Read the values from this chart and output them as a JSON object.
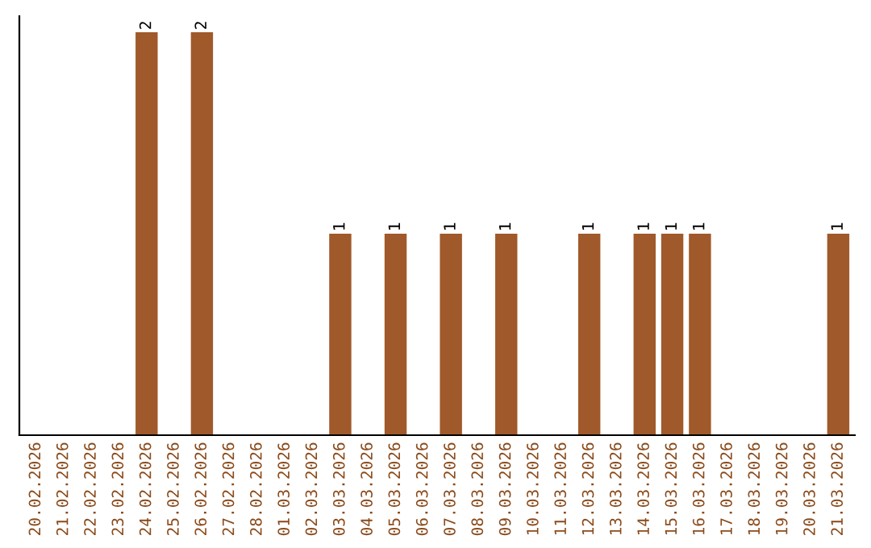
{
  "chart_data": {
    "type": "bar",
    "categories": [
      "20.02.2026",
      "21.02.2026",
      "22.02.2026",
      "23.02.2026",
      "24.02.2026",
      "25.02.2026",
      "26.02.2026",
      "27.02.2026",
      "28.02.2026",
      "01.03.2026",
      "02.03.2026",
      "03.03.2026",
      "04.03.2026",
      "05.03.2026",
      "06.03.2026",
      "07.03.2026",
      "08.03.2026",
      "09.03.2026",
      "10.03.2026",
      "11.03.2026",
      "12.03.2026",
      "13.03.2026",
      "14.03.2026",
      "15.03.2026",
      "16.03.2026",
      "17.03.2026",
      "18.03.2026",
      "19.03.2026",
      "20.03.2026",
      "21.03.2026"
    ],
    "values": [
      0,
      0,
      0,
      0,
      2,
      0,
      2,
      0,
      0,
      0,
      0,
      1,
      0,
      1,
      0,
      1,
      0,
      1,
      0,
      0,
      1,
      0,
      1,
      1,
      1,
      0,
      0,
      0,
      0,
      1
    ],
    "value_labels": [
      null,
      null,
      null,
      null,
      "2",
      null,
      "2",
      null,
      null,
      null,
      null,
      "1",
      null,
      "1",
      null,
      "1",
      null,
      "1",
      null,
      null,
      "1",
      null,
      "1",
      "1",
      "1",
      null,
      null,
      null,
      null,
      "1"
    ],
    "color": "#a0592a",
    "ylim": [
      0,
      2.08
    ],
    "tick_labels": "x",
    "grid": false,
    "legend": false
  }
}
